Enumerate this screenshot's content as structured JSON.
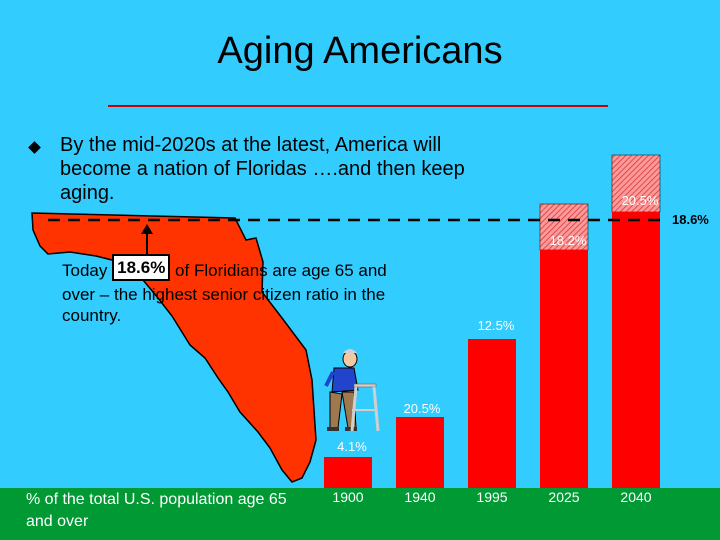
{
  "slide": {
    "title": "Aging Americans",
    "bullet": "By the mid-2020s at the latest, America will become a nation of Floridas ….and then keep aging.",
    "callout_before": "Today",
    "callout_value": "18.6%",
    "callout_after": "of Floridians are age 65 and over – the highest senior citizen ratio in the country.",
    "footnote": "% of the total U.S. population age 65 and over"
  },
  "colors": {
    "background": "#33ccff",
    "bar": "#ff0000",
    "florida": "#ff3300",
    "footer_band": "#009933",
    "rule": "#cc0000"
  },
  "chart_data": {
    "type": "bar",
    "categories": [
      "1900",
      "1940",
      "1995",
      "2025",
      "2040"
    ],
    "values": [
      4.1,
      20.5,
      12.5,
      18.2,
      20.5
    ],
    "value_labels": [
      "4.1%",
      "20.5%",
      "12.5%",
      "18.2%",
      "20.5%"
    ],
    "hatched_extension": [
      false,
      false,
      false,
      true,
      true
    ],
    "reference_line": {
      "value": 18.6,
      "label": "18.6%"
    },
    "title": "",
    "xlabel": "",
    "ylabel": ""
  }
}
